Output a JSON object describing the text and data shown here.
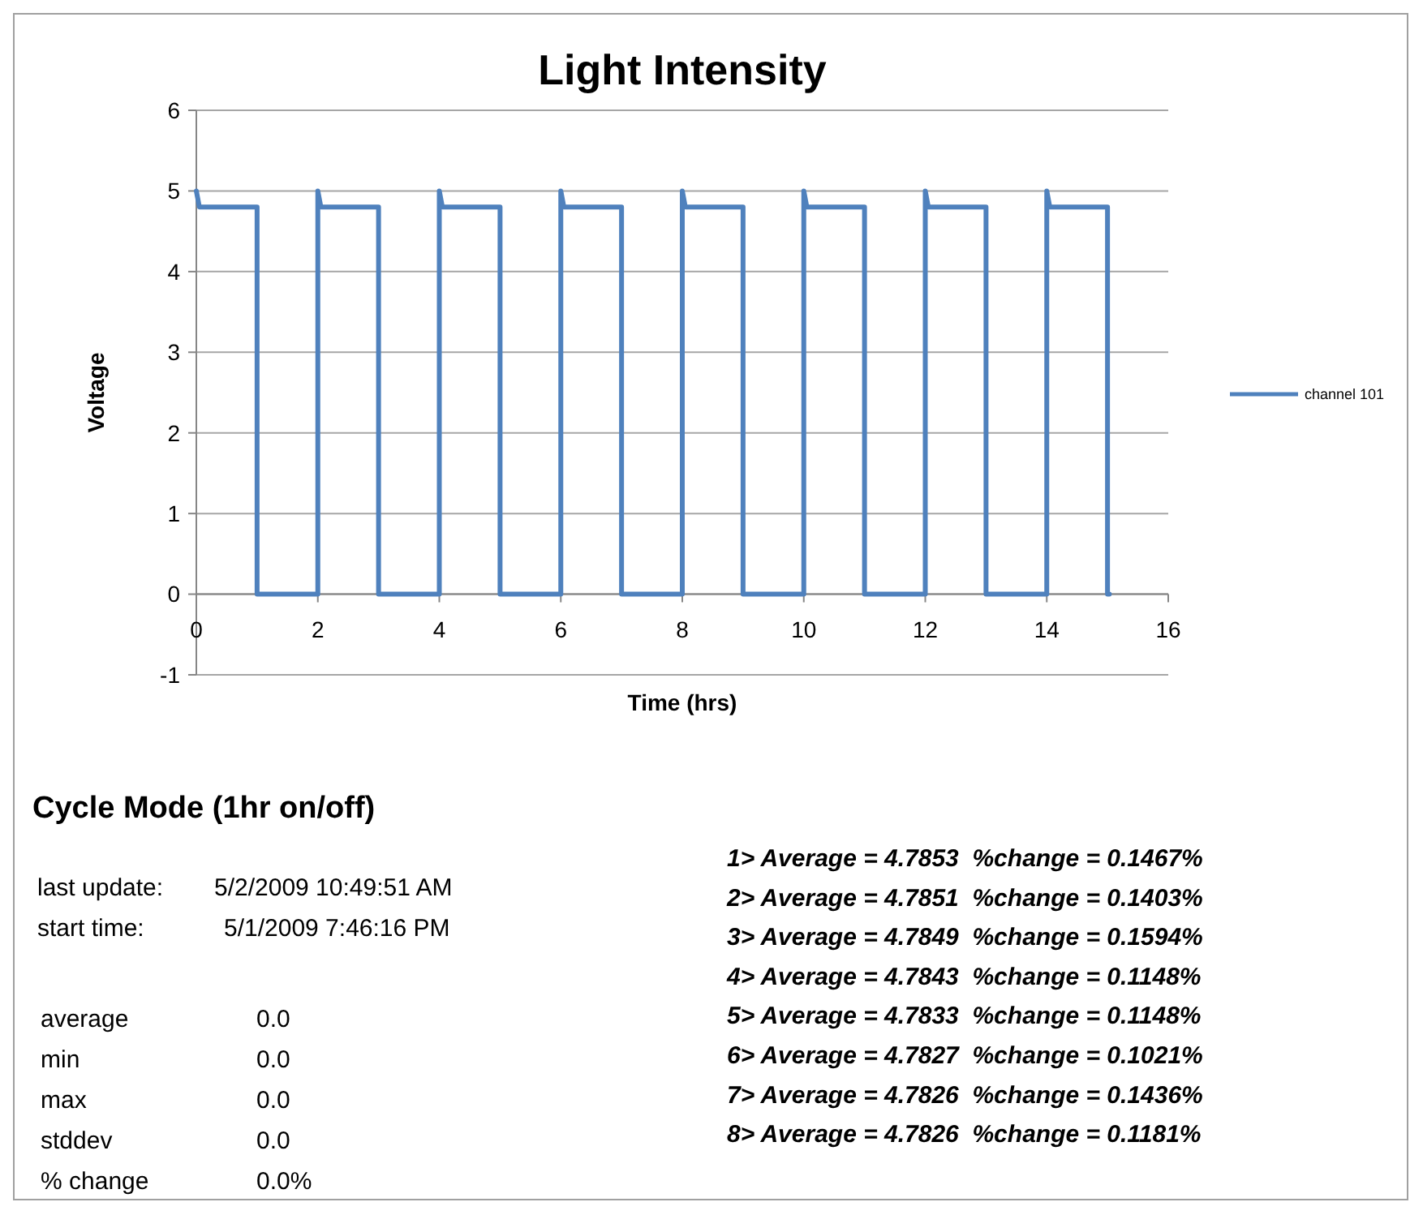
{
  "chart_data": {
    "type": "line",
    "title": "Light Intensity",
    "xlabel": "Time (hrs)",
    "ylabel": "Voltage",
    "xlim": [
      0,
      16
    ],
    "xticks": [
      0,
      2,
      4,
      6,
      8,
      10,
      12,
      14,
      16
    ],
    "ylim": [
      -1,
      6
    ],
    "yticks": [
      -1,
      0,
      1,
      2,
      3,
      4,
      5,
      6
    ],
    "grid": "y",
    "legend": "right",
    "marker": "none",
    "line_style": "solid",
    "series": [
      {
        "name": "channel 101",
        "color": "#4f81bd",
        "x": [
          0,
          0.05,
          1,
          1,
          2,
          2,
          2.05,
          3,
          3,
          4,
          4,
          4.05,
          5,
          5,
          6,
          6,
          6.05,
          7,
          7,
          8,
          8,
          8.05,
          9,
          9,
          10,
          10,
          10.05,
          11,
          11,
          12,
          12,
          12.05,
          13,
          13,
          14,
          14,
          14.05,
          15,
          15,
          15.03
        ],
        "values": [
          5,
          4.8,
          4.8,
          0,
          0,
          5,
          4.8,
          4.8,
          0,
          0,
          5,
          4.8,
          4.8,
          0,
          0,
          5,
          4.8,
          4.8,
          0,
          0,
          5,
          4.8,
          4.8,
          0,
          0,
          5,
          4.8,
          4.8,
          0,
          0,
          5,
          4.8,
          4.8,
          0,
          0,
          5,
          4.8,
          4.8,
          0,
          0
        ]
      }
    ],
    "annotations": [
      "Cycle Mode (1hr on/off)",
      "last update: 5/2/2009 10:49:51 AM",
      "start time: 5/1/2009 7:46:16 PM",
      "average 0.0",
      "min 0.0",
      "max 0.0",
      "stddev 0.0",
      "% change 0.0%",
      "1> Average = 4.7853  %change = 0.1467%",
      "2> Average = 4.7851  %change = 0.1403%",
      "3> Average = 4.7849  %change = 0.1594%",
      "4> Average = 4.7843  %change = 0.1148%",
      "5> Average = 4.7833  %change = 0.1148%",
      "6> Average = 4.7827  %change = 0.1021%",
      "7> Average = 4.7826  %change = 0.1436%",
      "8> Average = 4.7826  %change = 0.1181%"
    ]
  }
}
